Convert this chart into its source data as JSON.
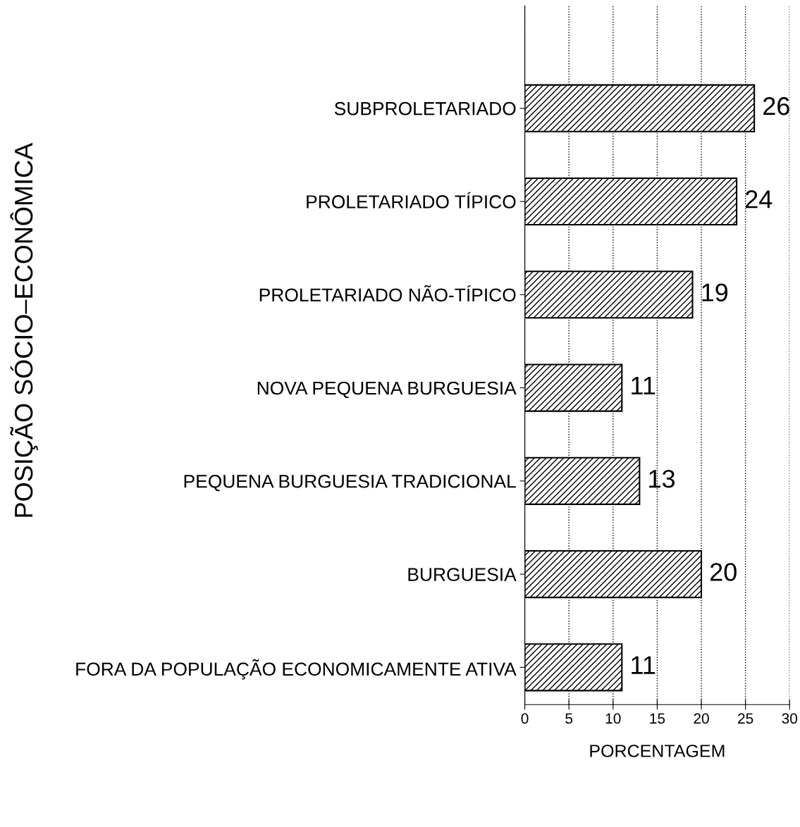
{
  "chart_data": {
    "type": "bar",
    "orientation": "horizontal",
    "categories": [
      "SUBPROLETARIADO",
      "PROLETARIADO TÍPICO",
      "PROLETARIADO NÃO-TÍPICO",
      "NOVA PEQUENA BURGUESIA",
      "PEQUENA BURGUESIA TRADICIONAL",
      "BURGUESIA",
      "FORA DA POPULAÇÃO ECONOMICAMENTE ATIVA"
    ],
    "values": [
      26,
      24,
      19,
      11,
      13,
      20,
      11
    ],
    "color": "#000000",
    "xlim": [
      0,
      30
    ],
    "xticks": [
      0,
      5,
      10,
      15,
      20,
      25,
      30
    ],
    "xlabel": "PORCENTAGEM",
    "ylabel": "POSIÇÃO SÓCIO–ECONÔMICA",
    "grid": "x",
    "data_labels": true
  }
}
